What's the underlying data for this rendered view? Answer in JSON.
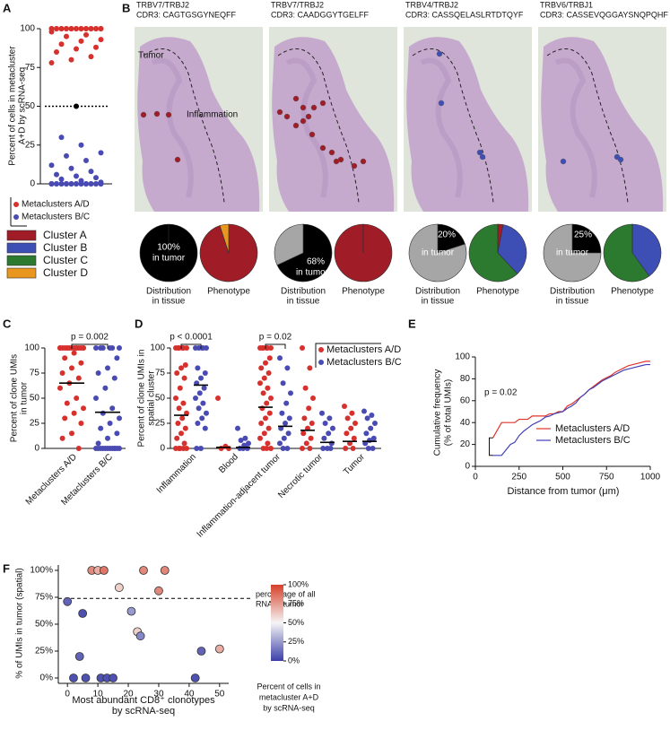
{
  "chart_data": [
    {
      "panel": "A",
      "type": "strip",
      "ylabel": [
        "Percent of cells in metacluster",
        "A+D by scRNA-seq"
      ],
      "ylim": [
        0,
        100
      ],
      "yticks": [
        0,
        25,
        50,
        75,
        100
      ],
      "threshold": 50,
      "series": [
        {
          "name": "Metaclusters A/D",
          "color": "#d7312e",
          "values": [
            100,
            100,
            100,
            100,
            100,
            100,
            100,
            100,
            100,
            100,
            100,
            100,
            100,
            100,
            100,
            100,
            100,
            100,
            100,
            100,
            100,
            100,
            98,
            96,
            95,
            93,
            92,
            90,
            88,
            87,
            85,
            82,
            80,
            78
          ]
        },
        {
          "color": "#000000",
          "values": [
            50
          ]
        },
        {
          "name": "Metaclusters B/C",
          "color": "#4a4bb2",
          "values": [
            0,
            0,
            0,
            0,
            0,
            0,
            0,
            0,
            0,
            0,
            0,
            0,
            0,
            0,
            0,
            0,
            0,
            0,
            0,
            0,
            0,
            0,
            0,
            0,
            0,
            1,
            2,
            3,
            4,
            5,
            6,
            8,
            10,
            12,
            15,
            18,
            20,
            25,
            30
          ]
        }
      ]
    },
    {
      "panel": "B",
      "type": "pie",
      "legend": {
        "categories": [
          "Cluster A",
          "Cluster B",
          "Cluster C",
          "Cluster D"
        ],
        "colors": [
          "#a01c26",
          "#3d4fb5",
          "#2b7a2f",
          "#e8961e"
        ]
      },
      "tissue_colors": [
        "#000000",
        "#a6a6a6"
      ],
      "region_labels": [
        "Tumor",
        "Inflammation"
      ],
      "tissue_label": [
        "Distribution",
        "in tissue"
      ],
      "phenotype_label": "Phenotype",
      "in_tumor_text": "in tumor",
      "clones": [
        {
          "title": [
            "TRBV7/TRBJ2",
            "CDR3: CAGTGSGYNEQFF"
          ],
          "tissue": [
            100,
            0
          ],
          "tissue_value_label": "100%",
          "phenotype": [
            95,
            0,
            0,
            5
          ]
        },
        {
          "title": [
            "TRBV7/TRBJ2",
            "CDR3: CAADGGYTGELFF"
          ],
          "tissue": [
            68,
            32
          ],
          "tissue_value_label": "68%",
          "phenotype": [
            100,
            0,
            0,
            0
          ]
        },
        {
          "title": [
            "TRBV4/TRBJ2",
            "CDR3: CASSQELASLRTDTQYF"
          ],
          "tissue": [
            20,
            80
          ],
          "tissue_value_label": "20%",
          "phenotype": [
            3,
            35,
            62,
            0
          ]
        },
        {
          "title": [
            "TRBV6/TRBJ1",
            "CDR3: CASSEVQGGAYSNQPQHF"
          ],
          "tissue": [
            25,
            75
          ],
          "tissue_value_label": "25%",
          "phenotype": [
            0,
            40,
            60,
            0
          ]
        }
      ]
    },
    {
      "panel": "C",
      "type": "strip",
      "ylabel": [
        "Percent of clone UMIs",
        "in tumor"
      ],
      "ylim": [
        0,
        100
      ],
      "yticks": [
        0,
        25,
        50,
        75,
        100
      ],
      "categories": [
        "Metaclusters A/D",
        "Metaclusters B/C"
      ],
      "annotation": "p = 0.002",
      "series": [
        {
          "color": "#d7312e",
          "median": 65,
          "values": [
            100,
            100,
            100,
            100,
            100,
            100,
            100,
            100,
            100,
            100,
            100,
            100,
            100,
            100,
            100,
            95,
            90,
            85,
            80,
            75,
            70,
            65,
            60,
            50,
            45,
            40,
            35,
            30,
            25,
            15,
            10,
            0
          ]
        },
        {
          "color": "#4a4bb2",
          "median": 36,
          "values": [
            100,
            100,
            100,
            100,
            100,
            100,
            90,
            80,
            75,
            70,
            60,
            50,
            40,
            35,
            30,
            25,
            20,
            15,
            10,
            5,
            0,
            0,
            0,
            0,
            0,
            0,
            0,
            0,
            0,
            0,
            0,
            0
          ]
        }
      ]
    },
    {
      "panel": "D",
      "type": "strip",
      "ylabel": [
        "Percent of clone UMIs in",
        "spatial cluster"
      ],
      "ylim": [
        0,
        100
      ],
      "yticks": [
        0,
        25,
        50,
        75,
        100
      ],
      "categories": [
        "Inflammation",
        "Blood",
        "Inflammation-adjacent tumor",
        "Necrotic tumor",
        "Tumor"
      ],
      "annotations": [
        "p < 0.0001",
        "p = 0.02"
      ],
      "series": [
        {
          "name": "Metaclusters A/D",
          "color": "#d7312e",
          "medians": [
            33,
            1,
            41,
            18,
            7
          ],
          "values": [
            [
              100,
              100,
              100,
              100,
              100,
              100,
              83,
              80,
              75,
              70,
              60,
              50,
              45,
              40,
              35,
              30,
              25,
              20,
              15,
              10,
              5,
              0,
              0,
              0,
              0,
              0
            ],
            [
              50,
              2,
              0,
              0
            ],
            [
              100,
              100,
              100,
              100,
              100,
              100,
              90,
              85,
              80,
              75,
              70,
              65,
              60,
              55,
              50,
              45,
              40,
              35,
              30,
              25,
              20,
              15,
              10,
              5,
              0,
              0,
              0
            ],
            [
              100,
              80,
              60,
              50,
              40,
              30,
              25,
              20,
              15,
              10,
              5,
              0,
              0
            ],
            [
              42,
              35,
              30,
              25,
              20,
              15,
              10,
              5,
              0,
              0
            ]
          ]
        },
        {
          "name": "Metaclusters B/C",
          "color": "#4a4bb2",
          "medians": [
            63,
            1,
            22,
            6,
            7
          ],
          "values": [
            [
              100,
              100,
              100,
              100,
              100,
              80,
              75,
              70,
              65,
              60,
              55,
              50,
              45,
              40,
              35,
              30,
              25,
              20,
              0,
              0
            ],
            [
              20,
              10,
              8,
              5,
              3,
              0,
              0,
              0
            ],
            [
              90,
              80,
              65,
              55,
              45,
              35,
              30,
              25,
              20,
              15,
              10,
              5,
              0,
              0
            ],
            [
              35,
              30,
              25,
              20,
              15,
              10,
              5,
              0,
              0,
              0
            ],
            [
              37,
              33,
              30,
              25,
              20,
              15,
              10,
              8,
              5,
              0,
              0
            ]
          ]
        }
      ]
    },
    {
      "panel": "E",
      "type": "line",
      "xlabel": "Distance from tumor (μm)",
      "ylabel": [
        "Cumulative frequency",
        "(% of total UMIs)"
      ],
      "xlim": [
        0,
        1000
      ],
      "xticks": [
        0,
        250,
        500,
        750,
        1000
      ],
      "ylim": [
        0,
        100
      ],
      "yticks": [
        0,
        20,
        40,
        60,
        80,
        100
      ],
      "annotation": "p = 0.02",
      "x": [
        100,
        150,
        175,
        200,
        225,
        250,
        275,
        300,
        325,
        350,
        375,
        400,
        425,
        450,
        475,
        500,
        525,
        550,
        575,
        600,
        625,
        650,
        675,
        700,
        725,
        750,
        775,
        800,
        825,
        850,
        875,
        900,
        925,
        950,
        975,
        1000
      ],
      "series": [
        {
          "name": "Metaclusters A/D",
          "color": "#e0332b",
          "values": [
            26,
            40,
            40,
            40,
            40,
            43,
            43,
            43,
            46,
            46,
            46,
            46,
            48,
            48,
            50,
            50,
            55,
            57,
            60,
            63,
            66,
            70,
            73,
            76,
            79,
            81,
            83,
            86,
            88,
            90,
            92,
            93,
            94,
            95,
            96,
            96
          ]
        },
        {
          "name": "Metaclusters B/C",
          "color": "#4040b8",
          "values": [
            10,
            10,
            15,
            20,
            22,
            28,
            32,
            35,
            38,
            40,
            42,
            45,
            46,
            48,
            49,
            50,
            53,
            55,
            58,
            63,
            66,
            70,
            72,
            75,
            78,
            80,
            82,
            84,
            86,
            88,
            89,
            90,
            91,
            92,
            93,
            93
          ]
        }
      ]
    },
    {
      "panel": "F",
      "type": "scatter",
      "xlabel": [
        "Most abundant CD8⁺ clonotypes",
        "by scRNA-seq"
      ],
      "ylabel": "% of UMIs in tumor (spatial)",
      "xlim": [
        -3,
        53
      ],
      "xticks": [
        0,
        10,
        20,
        30,
        40,
        50
      ],
      "ylim": [
        -5,
        105
      ],
      "yticks": [
        {
          "value": 0,
          "label": "0%"
        },
        {
          "value": 25,
          "label": "25%"
        },
        {
          "value": 50,
          "label": "50%"
        },
        {
          "value": 75,
          "label": "75%"
        },
        {
          "value": 100,
          "label": "100%"
        }
      ],
      "reference_line": 74,
      "reference_label": [
        "percentage of all",
        "RNA in tumor"
      ],
      "x": [
        0,
        4,
        5,
        2,
        6,
        11,
        13,
        15,
        8,
        10,
        12,
        17,
        21,
        23,
        24,
        25,
        30,
        32,
        42,
        44,
        50
      ],
      "y": [
        71,
        20,
        60,
        0,
        0,
        0,
        0,
        0,
        100,
        100,
        100,
        84,
        62,
        43,
        39,
        100,
        81,
        100,
        0,
        25,
        27
      ],
      "color_values": [
        10,
        10,
        5,
        5,
        5,
        5,
        5,
        5,
        80,
        70,
        85,
        60,
        25,
        60,
        20,
        80,
        80,
        80,
        5,
        10,
        70
      ],
      "clim": [
        0,
        100
      ],
      "colorbar_ticks": [
        {
          "value": 0,
          "label": "0%"
        },
        {
          "value": 25,
          "label": "25%"
        },
        {
          "value": 50,
          "label": "50%"
        },
        {
          "value": 75,
          "label": "75%"
        },
        {
          "value": 100,
          "label": "100%"
        }
      ],
      "colorbar_title": [
        "Percent of cells in",
        "metacluster A+D",
        "by scRNA-seq"
      ]
    }
  ]
}
